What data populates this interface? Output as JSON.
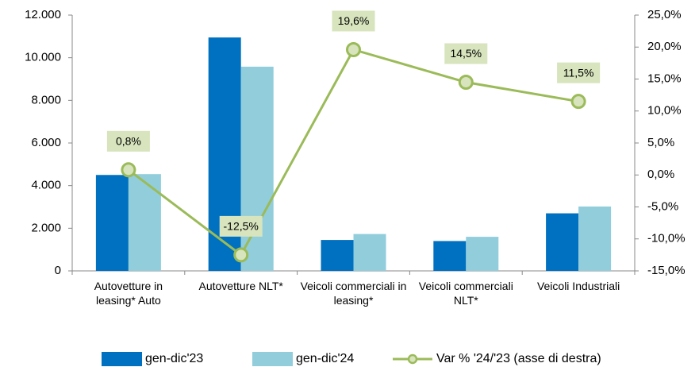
{
  "chart_data": {
    "type": "bar",
    "categories": [
      "Autovetture in leasing* Auto",
      "Autovetture NLT*",
      "Veicoli commerciali in leasing*",
      "Veicoli commerciali NLT*",
      "Veicoli Industriali"
    ],
    "series": [
      {
        "name": "gen-dic'23",
        "color": "#0070c0",
        "values": [
          4500,
          10950,
          1450,
          1400,
          2700
        ]
      },
      {
        "name": "gen-dic'24",
        "color": "#92cddc",
        "values": [
          4540,
          9580,
          1730,
          1600,
          3020
        ]
      },
      {
        "name": "Var % '24/'23 (asse di destra)",
        "type": "line",
        "axis": "y2",
        "color": "#9bbb59",
        "marker_fill": "#d7e4bd",
        "values": [
          0.8,
          -12.5,
          19.6,
          14.5,
          11.5
        ],
        "value_labels": [
          "0,8%",
          "-12,5%",
          "19,6%",
          "14,5%",
          "11,5%"
        ]
      }
    ],
    "ylim": [
      0,
      12000
    ],
    "yticks": [
      0,
      {
        "value": 2000,
        "label": "2.000"
      },
      {
        "value": 4000,
        "label": "4.000"
      },
      {
        "value": 6000,
        "label": "6.000"
      },
      {
        "value": 8000,
        "label": "8.000"
      },
      {
        "value": 10000,
        "label": "10.000"
      },
      {
        "value": 12000,
        "label": "12.000"
      }
    ],
    "y2lim": [
      -15,
      25
    ],
    "y2ticks": [
      {
        "value": -15,
        "label": "-15,0%"
      },
      {
        "value": -10,
        "label": "-10,0%"
      },
      {
        "value": -5,
        "label": "-5,0%"
      },
      {
        "value": 0,
        "label": "0,0%"
      },
      {
        "value": 5,
        "label": "5,0%"
      },
      {
        "value": 10,
        "label": "10,0%"
      },
      {
        "value": 15,
        "label": "15,0%"
      },
      {
        "value": 20,
        "label": "20,0%"
      },
      {
        "value": 25,
        "label": "25,0%"
      }
    ],
    "grid": false,
    "legend": "bottom"
  }
}
